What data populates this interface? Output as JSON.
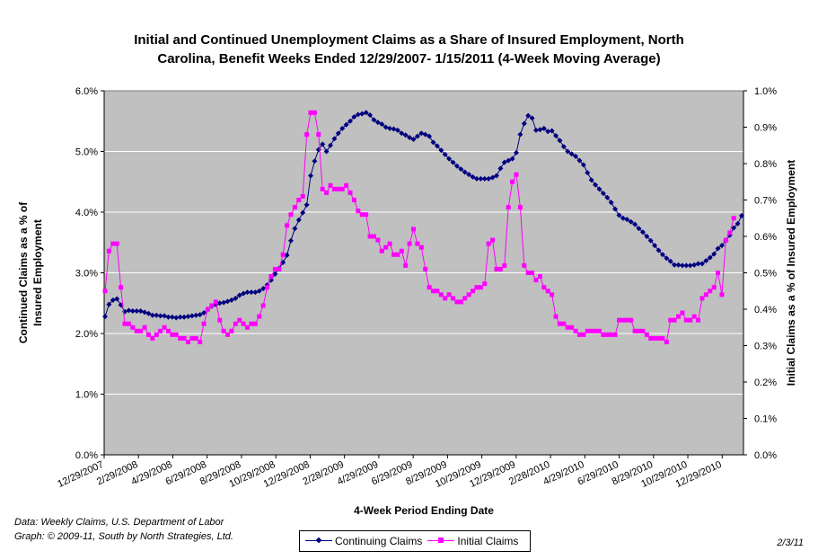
{
  "title_line1": "Initial and Continued Unemployment Claims as a Share of Insured Employment, North",
  "title_line2": "Carolina, Benefit Weeks Ended 12/29/2007- 1/15/2011 (4-Week Moving Average)",
  "footnote_line1": "Data:  Weekly Claims, U.S. Department of Labor",
  "footnote_line2": "Graph: © 2009-11, South by North Strategies, Ltd.",
  "date_stamp": "2/3/11",
  "colors": {
    "continuing": "#000080",
    "initial": "#ff00ff",
    "plot_bg": "#c0c0c0",
    "grid": "#ffffff"
  },
  "chart_data": {
    "type": "line",
    "title": "Initial and Continued Unemployment Claims as a Share of Insured Employment, North Carolina, Benefit Weeks Ended 12/29/2007- 1/15/2011 (4-Week Moving Average)",
    "xlabel": "4-Week Period Ending Date",
    "ylabel_left": "Continued Claims as a % of Insured Employment",
    "ylabel_right": "Initial Claims as a % of Insured Employment",
    "x_tick_labels": [
      "12/29/2007",
      "2/29/2008",
      "4/29/2008",
      "6/29/2008",
      "8/29/2008",
      "10/29/2008",
      "12/29/2008",
      "2/28/2009",
      "4/29/2009",
      "6/29/2009",
      "8/29/2009",
      "10/29/2009",
      "12/29/2009",
      "2/28/2010",
      "4/29/2010",
      "6/29/2010",
      "8/29/2010",
      "10/29/2010",
      "12/29/2010"
    ],
    "y_left_ticks": [
      "0.0%",
      "1.0%",
      "2.0%",
      "3.0%",
      "4.0%",
      "5.0%",
      "6.0%"
    ],
    "y_right_ticks": [
      "0.0%",
      "0.1%",
      "0.2%",
      "0.3%",
      "0.4%",
      "0.5%",
      "0.6%",
      "0.7%",
      "0.8%",
      "0.9%",
      "1.0%"
    ],
    "ylim_left": [
      0,
      6
    ],
    "ylim_right": [
      0,
      1
    ],
    "grid": true,
    "legend_position": "bottom",
    "series": [
      {
        "name": "Continuing Claims",
        "axis": "left",
        "marker": "diamond",
        "values": [
          2.28,
          2.48,
          2.55,
          2.57,
          2.47,
          2.36,
          2.38,
          2.37,
          2.37,
          2.37,
          2.35,
          2.33,
          2.3,
          2.3,
          2.29,
          2.29,
          2.27,
          2.27,
          2.26,
          2.27,
          2.27,
          2.28,
          2.29,
          2.3,
          2.31,
          2.34,
          2.4,
          2.45,
          2.48,
          2.5,
          2.51,
          2.53,
          2.55,
          2.58,
          2.63,
          2.66,
          2.68,
          2.68,
          2.68,
          2.7,
          2.74,
          2.8,
          2.88,
          2.98,
          3.07,
          3.17,
          3.29,
          3.53,
          3.73,
          3.87,
          3.99,
          4.12,
          4.6,
          4.84,
          5.03,
          5.12,
          5.0,
          5.1,
          5.21,
          5.3,
          5.38,
          5.44,
          5.5,
          5.57,
          5.61,
          5.62,
          5.64,
          5.6,
          5.52,
          5.48,
          5.45,
          5.4,
          5.38,
          5.37,
          5.35,
          5.3,
          5.27,
          5.23,
          5.2,
          5.25,
          5.3,
          5.28,
          5.25,
          5.15,
          5.09,
          5.02,
          4.95,
          4.88,
          4.82,
          4.76,
          4.71,
          4.66,
          4.62,
          4.58,
          4.55,
          4.55,
          4.55,
          4.55,
          4.57,
          4.6,
          4.72,
          4.82,
          4.85,
          4.88,
          4.98,
          5.28,
          5.46,
          5.59,
          5.55,
          5.35,
          5.36,
          5.38,
          5.33,
          5.34,
          5.26,
          5.18,
          5.08,
          5.0,
          4.96,
          4.92,
          4.85,
          4.78,
          4.65,
          4.53,
          4.45,
          4.38,
          4.31,
          4.24,
          4.16,
          4.05,
          3.95,
          3.9,
          3.88,
          3.84,
          3.8,
          3.73,
          3.67,
          3.6,
          3.53,
          3.45,
          3.37,
          3.3,
          3.24,
          3.19,
          3.13,
          3.13,
          3.12,
          3.12,
          3.12,
          3.13,
          3.15,
          3.15,
          3.2,
          3.25,
          3.31,
          3.4,
          3.45,
          3.53,
          3.62,
          3.74,
          3.81,
          3.94
        ]
      },
      {
        "name": "Initial Claims",
        "axis": "right",
        "marker": "square",
        "values": [
          0.45,
          0.56,
          0.58,
          0.58,
          0.46,
          0.36,
          0.36,
          0.35,
          0.34,
          0.34,
          0.35,
          0.33,
          0.32,
          0.33,
          0.34,
          0.35,
          0.34,
          0.33,
          0.33,
          0.32,
          0.32,
          0.31,
          0.32,
          0.32,
          0.31,
          0.36,
          0.4,
          0.41,
          0.42,
          0.37,
          0.34,
          0.33,
          0.34,
          0.36,
          0.37,
          0.36,
          0.35,
          0.36,
          0.36,
          0.38,
          0.41,
          0.46,
          0.49,
          0.51,
          0.51,
          0.55,
          0.63,
          0.66,
          0.68,
          0.7,
          0.71,
          0.88,
          0.94,
          0.94,
          0.88,
          0.73,
          0.72,
          0.74,
          0.73,
          0.73,
          0.73,
          0.74,
          0.72,
          0.7,
          0.67,
          0.66,
          0.66,
          0.6,
          0.6,
          0.59,
          0.56,
          0.57,
          0.58,
          0.55,
          0.55,
          0.56,
          0.52,
          0.58,
          0.62,
          0.58,
          0.57,
          0.51,
          0.46,
          0.45,
          0.45,
          0.44,
          0.43,
          0.44,
          0.43,
          0.42,
          0.42,
          0.43,
          0.44,
          0.45,
          0.46,
          0.46,
          0.47,
          0.58,
          0.59,
          0.51,
          0.51,
          0.52,
          0.68,
          0.75,
          0.77,
          0.68,
          0.52,
          0.5,
          0.5,
          0.48,
          0.49,
          0.46,
          0.45,
          0.44,
          0.38,
          0.36,
          0.36,
          0.35,
          0.35,
          0.34,
          0.33,
          0.33,
          0.34,
          0.34,
          0.34,
          0.34,
          0.33,
          0.33,
          0.33,
          0.33,
          0.37,
          0.37,
          0.37,
          0.37,
          0.34,
          0.34,
          0.34,
          0.33,
          0.32,
          0.32,
          0.32,
          0.32,
          0.31,
          0.37,
          0.37,
          0.38,
          0.39,
          0.37,
          0.37,
          0.38,
          0.37,
          0.43,
          0.44,
          0.45,
          0.46,
          0.5,
          0.44,
          0.59,
          0.61,
          0.65
        ]
      }
    ]
  }
}
